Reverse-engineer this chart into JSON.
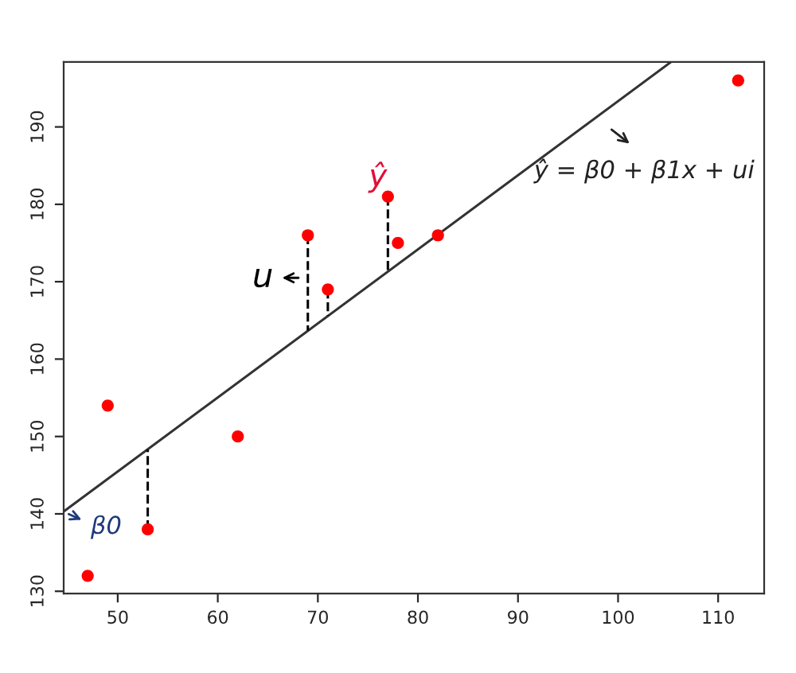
{
  "chart_data": {
    "type": "scatter",
    "xlim": [
      44.6,
      114.6
    ],
    "ylim": [
      129.7,
      198.4
    ],
    "xticks": [
      50,
      60,
      70,
      80,
      90,
      100,
      110
    ],
    "yticks": [
      130,
      140,
      150,
      160,
      170,
      180,
      190
    ],
    "grid": false,
    "legend": false,
    "series": [
      {
        "type": "line",
        "color": "#333333",
        "line_style": "solid",
        "x": [
          44.6,
          105.3
        ],
        "values": [
          140.3,
          198.4
        ]
      },
      {
        "type": "line",
        "color": "#000000",
        "line_style": "dashed",
        "x": [
          53,
          53
        ],
        "values": [
          138,
          148.3
        ]
      },
      {
        "type": "line",
        "color": "#000000",
        "line_style": "dashed",
        "x": [
          69,
          69
        ],
        "values": [
          176,
          163.7
        ]
      },
      {
        "type": "line",
        "color": "#000000",
        "line_style": "dashed",
        "x": [
          71,
          71
        ],
        "values": [
          169,
          165.6
        ]
      },
      {
        "type": "line",
        "color": "#000000",
        "line_style": "dashed",
        "x": [
          77,
          77
        ],
        "values": [
          181,
          171.3
        ]
      },
      {
        "color": "#ff0000",
        "marker": "circle",
        "x": [
          47,
          49,
          53,
          62,
          69,
          71,
          77,
          78,
          82,
          112
        ],
        "values": [
          132,
          154,
          138,
          150,
          176,
          169,
          181,
          175,
          176,
          196
        ]
      }
    ],
    "annotations": [
      "ŷ = β0 + β1x + ui",
      "u",
      "ŷ",
      "β0"
    ]
  }
}
